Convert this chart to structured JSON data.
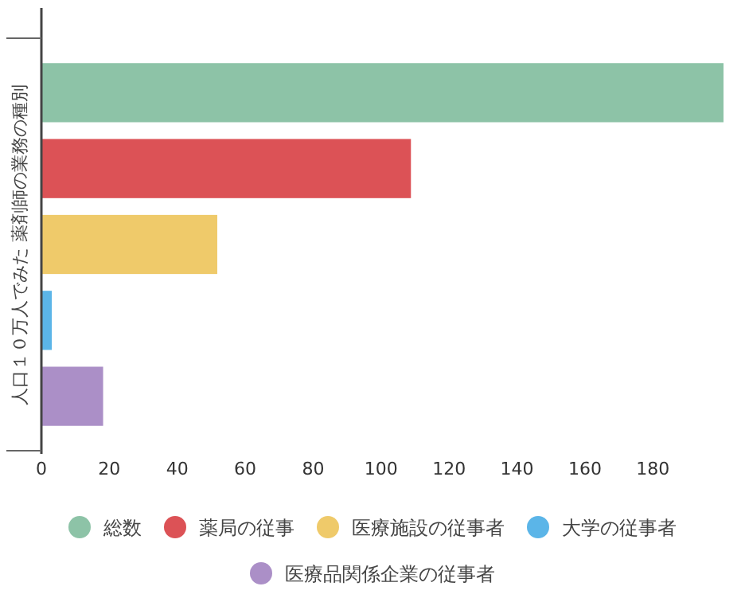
{
  "chart_data": {
    "type": "bar",
    "orientation": "horizontal",
    "ylabel": "人口１０万人でみた 薬剤師の業務の種別",
    "categories": [
      null
    ],
    "series": [
      {
        "name": "総数",
        "color": "#8dc3a7",
        "values": [
          201
        ]
      },
      {
        "name": "薬局の従事",
        "color": "#dc5256",
        "values": [
          109
        ]
      },
      {
        "name": "医療施設の従事者",
        "color": "#efca6a",
        "values": [
          52
        ]
      },
      {
        "name": "大学の従事者",
        "color": "#5bb5e8",
        "values": [
          3.3
        ]
      },
      {
        "name": "医療品関係企業の従事者",
        "color": "#ab8fc7",
        "values": [
          18.4
        ]
      }
    ],
    "xlim": [
      0,
      201
    ],
    "xticks": [
      0,
      20,
      40,
      60,
      80,
      100,
      120,
      140,
      160,
      180
    ],
    "legend": "bottom"
  }
}
